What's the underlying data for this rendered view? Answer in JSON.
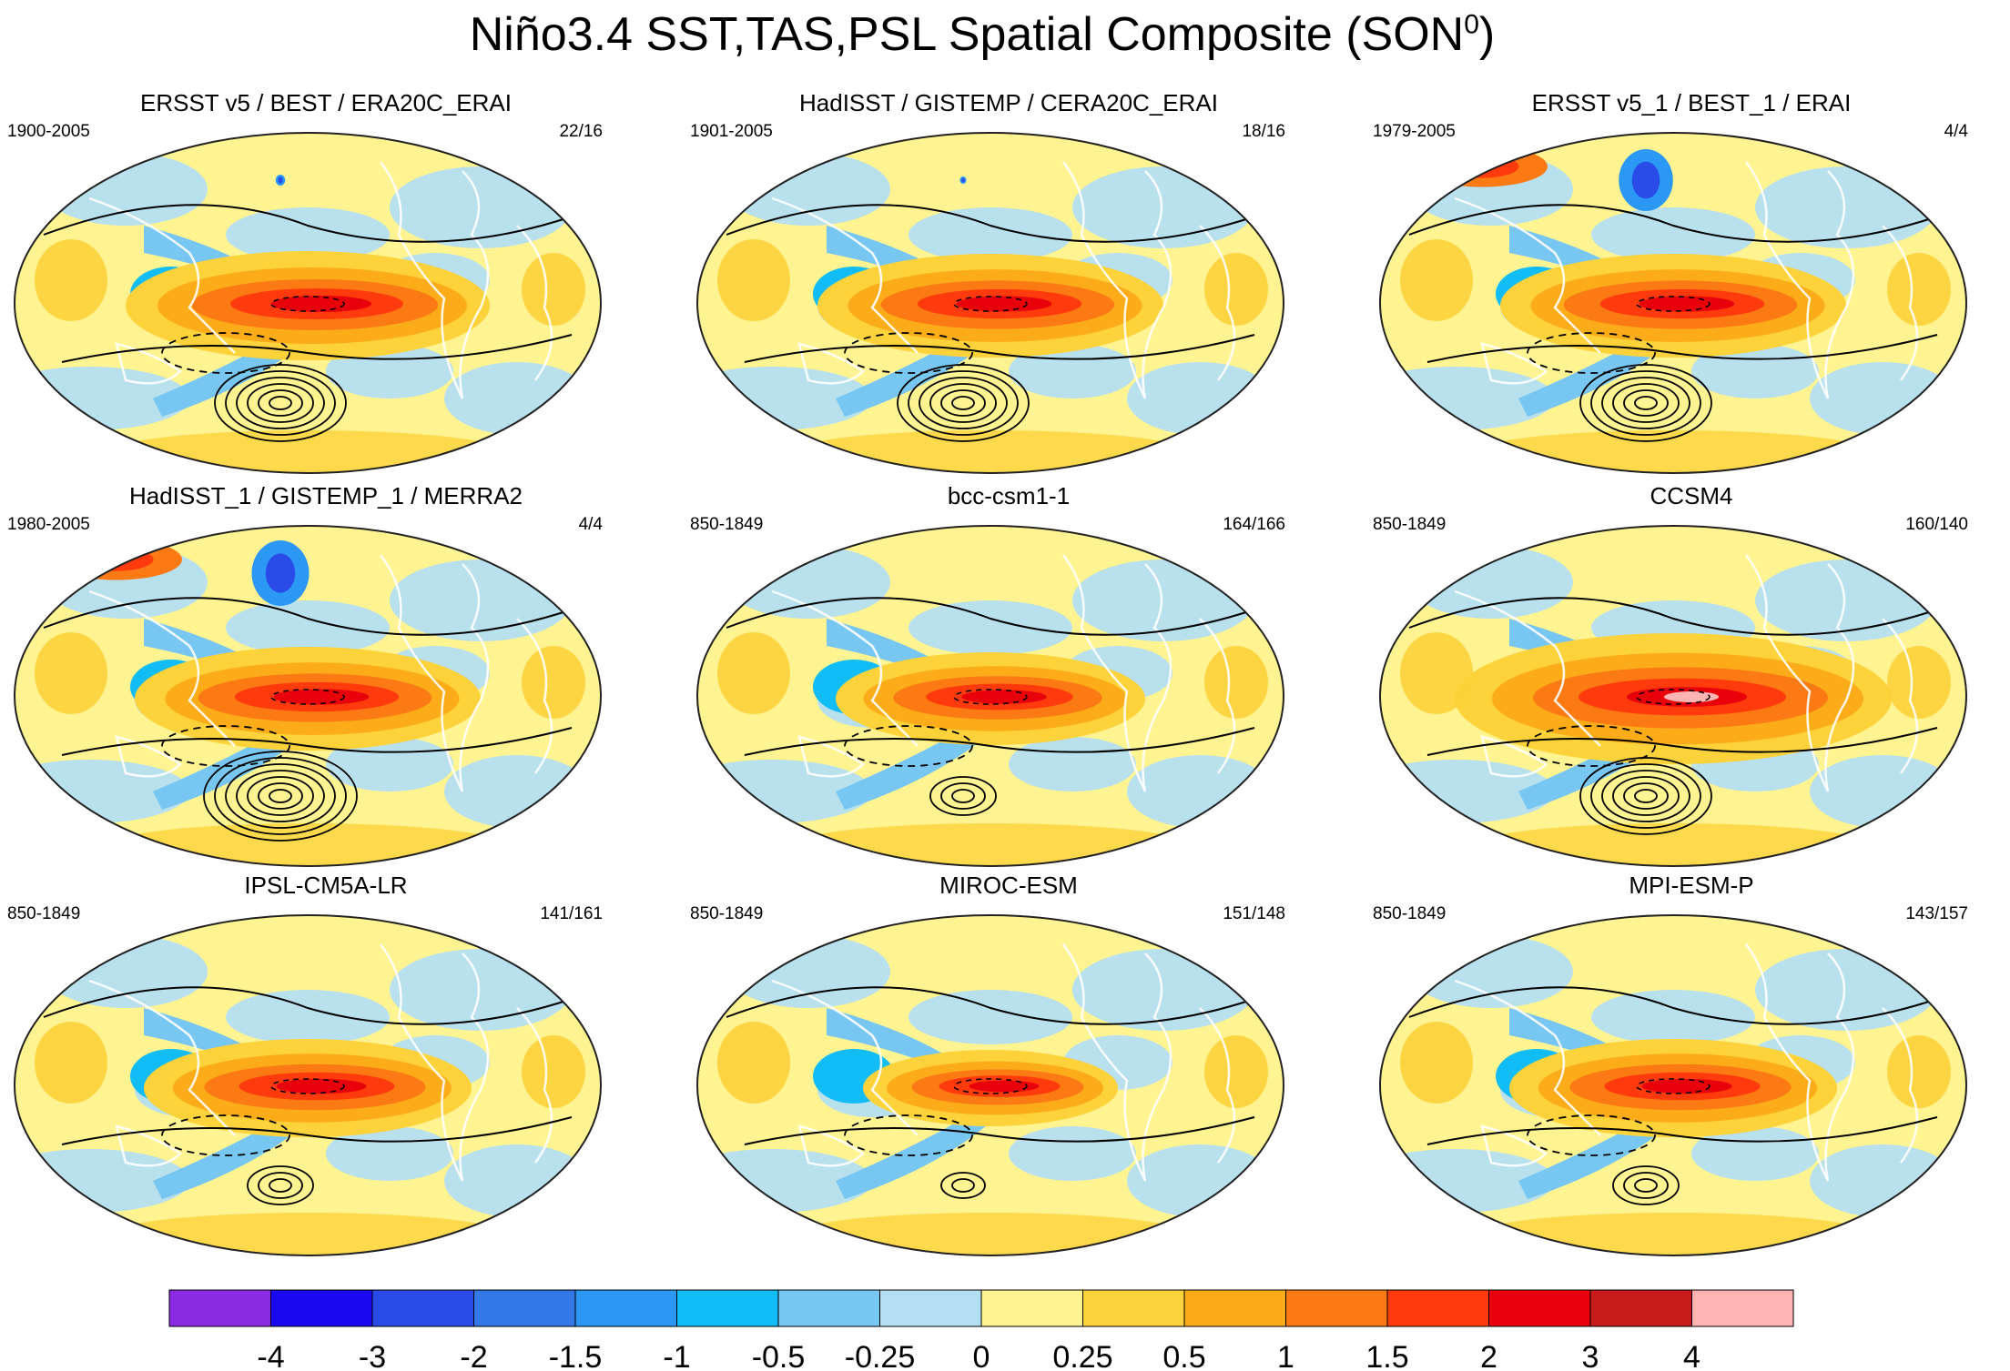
{
  "figure": {
    "title_main": "Niño3.4 SST,TAS,PSL Spatial Composite (SON",
    "title_sup": "0",
    "title_close": ")"
  },
  "panels": [
    {
      "title": "ERSST v5 / BEST / ERA20C_ERAI",
      "years": "1900-2005",
      "count": "22/16",
      "nino": 1.0,
      "warm_north": 0.0,
      "cold_north": 0.15,
      "psl_lows": 6,
      "psl_contours": true
    },
    {
      "title": "HadISST / GISTEMP / CERA20C_ERAI",
      "years": "1901-2005",
      "count": "18/16",
      "nino": 0.95,
      "warm_north": 0.0,
      "cold_north": 0.1,
      "psl_lows": 6,
      "psl_contours": true
    },
    {
      "title": "ERSST v5_1 / BEST_1 / ERAI",
      "years": "1979-2005",
      "count": "4/4",
      "nino": 0.95,
      "warm_north": 0.9,
      "cold_north": 0.85,
      "psl_lows": 6,
      "psl_contours": true
    },
    {
      "title": "HadISST_1 / GISTEMP_1 / MERRA2",
      "years": "1980-2005",
      "count": "4/4",
      "nino": 0.95,
      "warm_north": 0.9,
      "cold_north": 0.9,
      "psl_lows": 7,
      "psl_contours": true
    },
    {
      "title": "bcc-csm1-1",
      "years": "850-1849",
      "count": "164/166",
      "nino": 0.85,
      "warm_north": 0.0,
      "cold_north": 0.0,
      "psl_lows": 3,
      "psl_contours": true
    },
    {
      "title": "CCSM4",
      "years": "850-1849",
      "count": "160/140",
      "nino": 1.2,
      "warm_north": 0.2,
      "cold_north": 0.0,
      "psl_lows": 6,
      "psl_contours": true
    },
    {
      "title": "IPSL-CM5A-LR",
      "years": "850-1849",
      "count": "141/161",
      "nino": 0.9,
      "warm_north": 0.0,
      "cold_north": 0.0,
      "psl_lows": 3,
      "psl_contours": true
    },
    {
      "title": "MIROC-ESM",
      "years": "850-1849",
      "count": "151/148",
      "nino": 0.7,
      "warm_north": 0.0,
      "cold_north": 0.0,
      "psl_lows": 2,
      "psl_contours": true
    },
    {
      "title": "MPI-ESM-P",
      "years": "850-1849",
      "count": "143/157",
      "nino": 0.9,
      "warm_north": 0.0,
      "cold_north": 0.0,
      "psl_lows": 3,
      "psl_contours": true
    }
  ],
  "colorbar": {
    "labels": [
      "-4",
      "-3",
      "-2",
      "-1.5",
      "-1",
      "-0.5",
      "-0.25",
      "0",
      "0.25",
      "0.5",
      "1",
      "1.5",
      "2",
      "3",
      "4"
    ],
    "colors": [
      "#8a2be2",
      "#1a0af0",
      "#2a4be8",
      "#3478e8",
      "#2a98f4",
      "#12bcf4",
      "#78c6f2",
      "#b4def2",
      "#fff491",
      "#fdd23a",
      "#fbac18",
      "#fb7a14",
      "#ff3a0c",
      "#e8000a",
      "#c81c1c",
      "#ffb4b4"
    ]
  },
  "map_palette": {
    "ocean_base": "#fff491",
    "outline": "#222222",
    "coast": "#ffffff"
  },
  "chart_data": {
    "type": "heatmap",
    "title": "Niño3.4 SST,TAS,PSL Spatial Composite (SON0)",
    "color_levels": [
      -4,
      -3,
      -2,
      -1.5,
      -1,
      -0.5,
      -0.25,
      0,
      0.25,
      0.5,
      1,
      1.5,
      2,
      3,
      4
    ],
    "panels": [
      "ERSST v5 / BEST / ERA20C_ERAI",
      "HadISST / GISTEMP / CERA20C_ERAI",
      "ERSST v5_1 / BEST_1 / ERAI",
      "HadISST_1 / GISTEMP_1 / MERRA2",
      "bcc-csm1-1",
      "CCSM4",
      "IPSL-CM5A-LR",
      "MIROC-ESM",
      "MPI-ESM-P"
    ],
    "legend_position": "bottom"
  }
}
